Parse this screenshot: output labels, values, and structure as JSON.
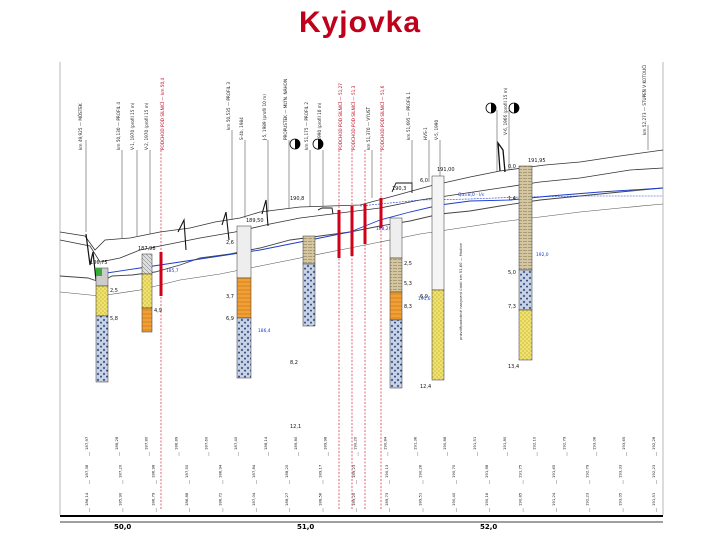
{
  "title": "Kyjovka",
  "chainage": [
    "50,0",
    "51,0",
    "52,0"
  ],
  "boreholes": [
    {
      "id": "bh1",
      "top": "186,75",
      "depth_marks": [
        "2,5",
        "5,8"
      ]
    },
    {
      "id": "bh2",
      "top": "187,98",
      "depth_marks": [
        "4,9"
      ]
    },
    {
      "id": "bh3",
      "top": "189,50",
      "depth_marks": [
        "2,6",
        "3,7",
        "6,9"
      ]
    },
    {
      "id": "bh4",
      "top": "190,8",
      "depth_marks": [
        "8,2",
        "12,1"
      ]
    },
    {
      "id": "bh5",
      "top": "190,3",
      "depth_marks": [
        "2,5",
        "5,3",
        "8,3"
      ]
    },
    {
      "id": "bh6",
      "top": "191,00",
      "depth_marks": [
        "6,0",
        "6,9",
        "12,4"
      ]
    },
    {
      "id": "bh7",
      "top": "191,95",
      "depth_marks": [
        "0,0",
        "1,4",
        "5,0",
        "7,3",
        "13,4"
      ]
    }
  ],
  "water_labels": [
    "192,0",
    "191,6",
    "188,29",
    "186,4",
    "185,7"
  ],
  "flow_label": "Qa=8,0 · l/s",
  "top_labels": [
    {
      "text": "km 49,925 — MŮSTEK",
      "red": false
    },
    {
      "text": "km 50,130 — PROFIL 4",
      "red": false
    },
    {
      "text": "V-1, 1970 (profil 15 m)",
      "red": false
    },
    {
      "text": "V-2, 1970 (profil 15 m)",
      "red": false
    },
    {
      "text": "PODCHOD POD SILNICÍ — km 50,4",
      "red": true
    },
    {
      "text": "km 50,535 — PROFIL 3",
      "red": false
    },
    {
      "text": "S-4b, 1984",
      "red": false
    },
    {
      "text": "J-5, 1989 (profil 10 m)",
      "red": false
    },
    {
      "text": "PROPUSTEK — MLÝN. NÁHON",
      "red": false
    },
    {
      "text": "km 51,175 — PROFIL 2",
      "red": false
    },
    {
      "text": "V-3, 1990 (profil 10 m)",
      "red": false
    },
    {
      "text": "PODCHOD POD SILNICÍ — 51,27",
      "red": true
    },
    {
      "text": "PODCHOD POD SILNICÍ — 51,3",
      "red": true
    },
    {
      "text": "km 51,370 — VÝUSŤ",
      "red": false
    },
    {
      "text": "PODCHOD POD SILNICÍ — 51,6",
      "red": true
    },
    {
      "text": "km 51,695 — PROFIL 1",
      "red": false
    },
    {
      "text": "HVS-1",
      "red": false
    },
    {
      "text": "V-5, 1990",
      "red": false
    },
    {
      "text": "V-6, 1966 (profil 15 m)",
      "red": false
    },
    {
      "text": "km 52,273 — STUPEŇ V KOTOUČI",
      "red": false
    }
  ],
  "note": "pravděpodobné nasycení údolí km 51,60 — Hodice",
  "bottom_rows": {
    "row1": [
      "187,97",
      "188,28",
      "187,80",
      "186,89",
      "187,60",
      "187,40",
      "188,14",
      "189,80",
      "189,98",
      "190,20",
      "190,84",
      "191,36",
      "190,88",
      "191,51",
      "191,80",
      "192,10",
      "192,79",
      "193,06",
      "193,65",
      "192,28"
    ],
    "row2": [
      "187,38",
      "187,20",
      "186,98",
      "187,50",
      "186,94",
      "187,84",
      "188,20",
      "189,17",
      "189,23",
      "190,13",
      "190,26",
      "190,70",
      "191,98",
      "191,75",
      "191,65",
      "192,79",
      "193,33",
      "192,23"
    ],
    "row3": [
      "186,14",
      "185,90",
      "186,79",
      "186,88",
      "186,72",
      "187,04",
      "188,27",
      "188,56",
      "189,20",
      "189,73",
      "189,51",
      "190,40",
      "190,16",
      "190,85",
      "191,24",
      "192,23",
      "193,05",
      "191,51"
    ]
  },
  "colors": {
    "title": "#c0001a",
    "water": "#1a3ccc",
    "red_marker": "#d0001a"
  }
}
